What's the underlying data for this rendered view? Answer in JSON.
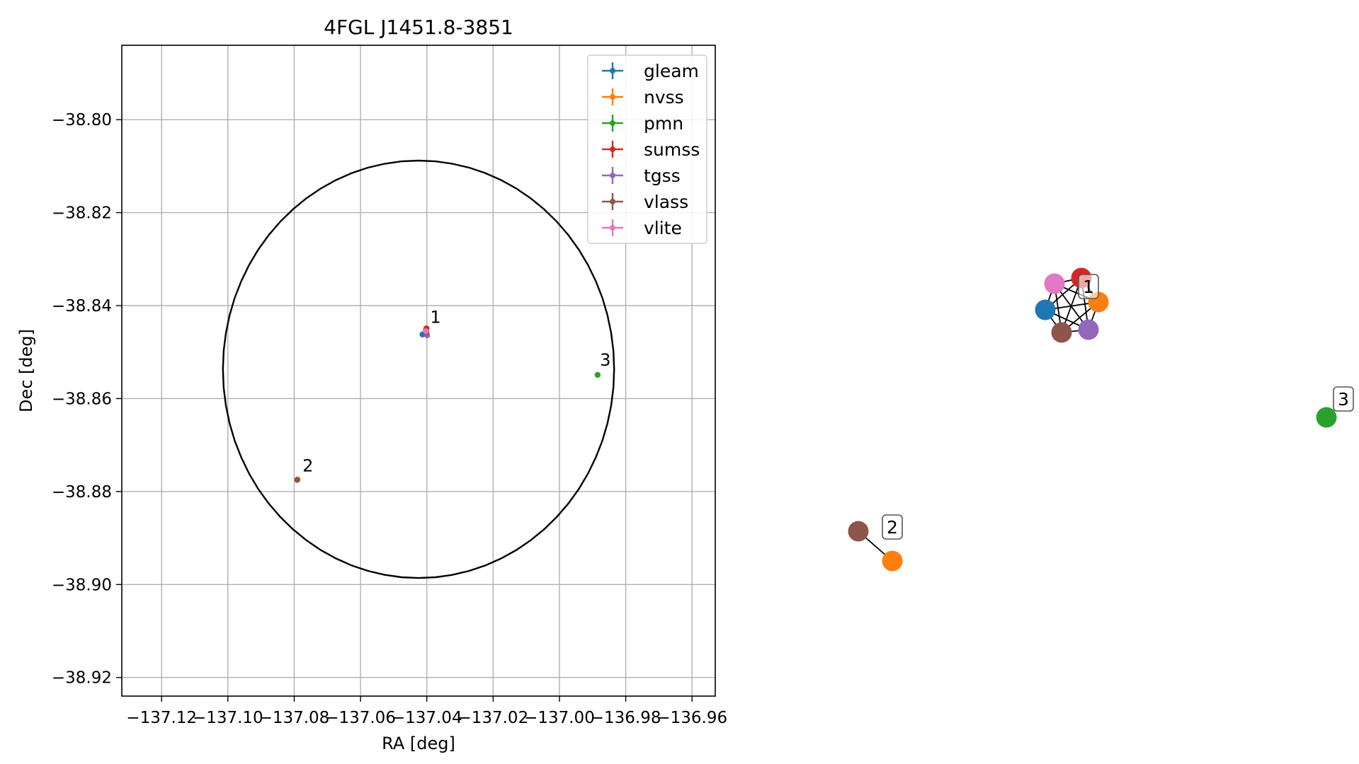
{
  "chart_data": [
    {
      "type": "scatter",
      "title": "4FGL J1451.8-3851",
      "xlabel": "RA [deg]",
      "ylabel": "Dec [deg]",
      "xlim": [
        -137.132,
        -136.953
      ],
      "ylim": [
        -38.924,
        -38.784
      ],
      "xticks": [
        -137.12,
        -137.1,
        -137.08,
        -137.06,
        -137.04,
        -137.02,
        -137.0,
        -136.98,
        -136.96
      ],
      "xtick_labels": [
        "−137.12",
        "−137.10",
        "−137.08",
        "−137.06",
        "−137.04",
        "−137.02",
        "−137.00",
        "−136.98",
        "−136.96"
      ],
      "yticks": [
        -38.8,
        -38.82,
        -38.84,
        -38.86,
        -38.88,
        -38.9,
        -38.92
      ],
      "ytick_labels": [
        "−38.80",
        "−38.82",
        "−38.84",
        "−38.86",
        "−38.88",
        "−38.90",
        "−38.92"
      ],
      "grid": true,
      "legend_position": "top-right",
      "circle": {
        "center": [
          -137.0425,
          -38.8537
        ],
        "radius_ra": 0.059,
        "radius_dec": 0.0449
      },
      "series": [
        {
          "name": "gleam",
          "color": "#1f77b4",
          "points": [
            [
              -137.0413,
              -38.8462
            ]
          ]
        },
        {
          "name": "nvss",
          "color": "#ff7f0e",
          "points": [
            [
              -137.0403,
              -38.8452
            ],
            [
              -137.079,
              -38.8774
            ]
          ]
        },
        {
          "name": "pmn",
          "color": "#2ca02c",
          "points": [
            [
              -136.9885,
              -38.8549
            ]
          ]
        },
        {
          "name": "sumss",
          "color": "#d62728",
          "points": [
            [
              -137.0401,
              -38.8449
            ]
          ]
        },
        {
          "name": "tgss",
          "color": "#9467bd",
          "points": [
            [
              -137.0399,
              -38.8464
            ]
          ]
        },
        {
          "name": "vlass",
          "color": "#8c564b",
          "points": [
            [
              -137.0401,
              -38.8458
            ],
            [
              -137.0791,
              -38.8775
            ]
          ]
        },
        {
          "name": "vlite",
          "color": "#e377c2",
          "points": [
            [
              -137.0403,
              -38.8455
            ]
          ]
        }
      ],
      "annotations": [
        {
          "text": "1",
          "x": -137.039,
          "y": -38.8437
        },
        {
          "text": "2",
          "x": -137.0775,
          "y": -38.8757
        },
        {
          "text": "3",
          "x": -136.9878,
          "y": -38.8529
        }
      ]
    },
    {
      "type": "network",
      "node_labels": [
        "1",
        "2",
        "3"
      ],
      "clusters": [
        {
          "label": "1",
          "members": [
            "gleam",
            "nvss",
            "sumss",
            "tgss",
            "vlass",
            "vlite"
          ]
        },
        {
          "label": "2",
          "members": [
            "vlass",
            "nvss"
          ]
        },
        {
          "label": "3",
          "members": [
            "pmn"
          ]
        }
      ]
    }
  ]
}
